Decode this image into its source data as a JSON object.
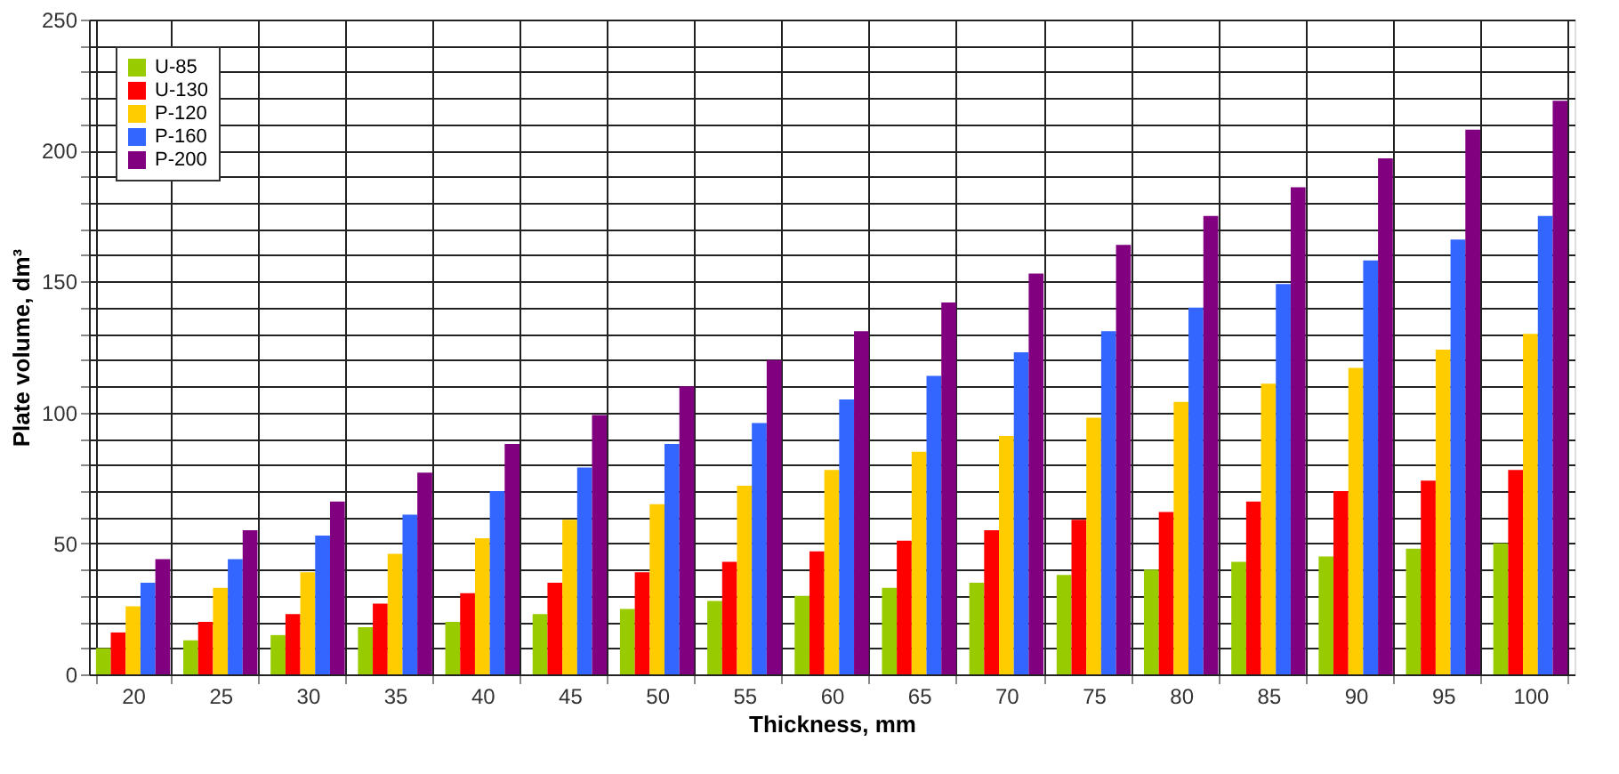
{
  "chart_data": {
    "type": "bar",
    "xlabel": "Thickness, mm",
    "ylabel": "Plate volume, dm³",
    "categories": [
      "20",
      "25",
      "30",
      "35",
      "40",
      "45",
      "50",
      "55",
      "60",
      "65",
      "70",
      "75",
      "80",
      "85",
      "90",
      "95",
      "100"
    ],
    "series": [
      {
        "name": "U-85",
        "color": "#99cc00",
        "values": [
          10,
          13,
          15,
          18,
          20,
          23,
          25,
          28,
          30,
          33,
          35,
          38,
          40,
          43,
          45,
          48,
          50
        ]
      },
      {
        "name": "U-130",
        "color": "#ff0000",
        "values": [
          16,
          20,
          23,
          27,
          31,
          35,
          39,
          43,
          47,
          51,
          55,
          59,
          62,
          66,
          70,
          74,
          78
        ]
      },
      {
        "name": "P-120",
        "color": "#ffcc00",
        "values": [
          26,
          33,
          39,
          46,
          52,
          59,
          65,
          72,
          78,
          85,
          91,
          98,
          104,
          111,
          117,
          124,
          130
        ]
      },
      {
        "name": "P-160",
        "color": "#3366ff",
        "values": [
          35,
          44,
          53,
          61,
          70,
          79,
          88,
          96,
          105,
          114,
          123,
          131,
          140,
          149,
          158,
          166,
          175
        ]
      },
      {
        "name": "P-200",
        "color": "#800080",
        "values": [
          44,
          55,
          66,
          77,
          88,
          99,
          110,
          120,
          131,
          142,
          153,
          164,
          175,
          186,
          197,
          208,
          219
        ]
      }
    ],
    "ylim": [
      0,
      250
    ],
    "yticks": [
      0,
      {
        "value": 10,
        "label": null
      },
      {
        "value": 20,
        "label": null
      },
      {
        "value": 30,
        "label": null
      },
      {
        "value": 40,
        "label": null
      },
      50,
      {
        "value": 60,
        "label": null
      },
      {
        "value": 70,
        "label": null
      },
      {
        "value": 80,
        "label": null
      },
      {
        "value": 90,
        "label": null
      },
      100,
      {
        "value": 110,
        "label": null
      },
      {
        "value": 120,
        "label": null
      },
      {
        "value": 130,
        "label": null
      },
      {
        "value": 140,
        "label": null
      },
      150,
      {
        "value": 160,
        "label": null
      },
      {
        "value": 170,
        "label": null
      },
      {
        "value": 180,
        "label": null
      },
      {
        "value": 190,
        "label": null
      },
      200,
      {
        "value": 210,
        "label": null
      },
      {
        "value": 220,
        "label": null
      },
      {
        "value": 230,
        "label": null
      },
      {
        "value": 240,
        "label": null
      },
      250
    ],
    "grid": true,
    "legend": "top left"
  }
}
